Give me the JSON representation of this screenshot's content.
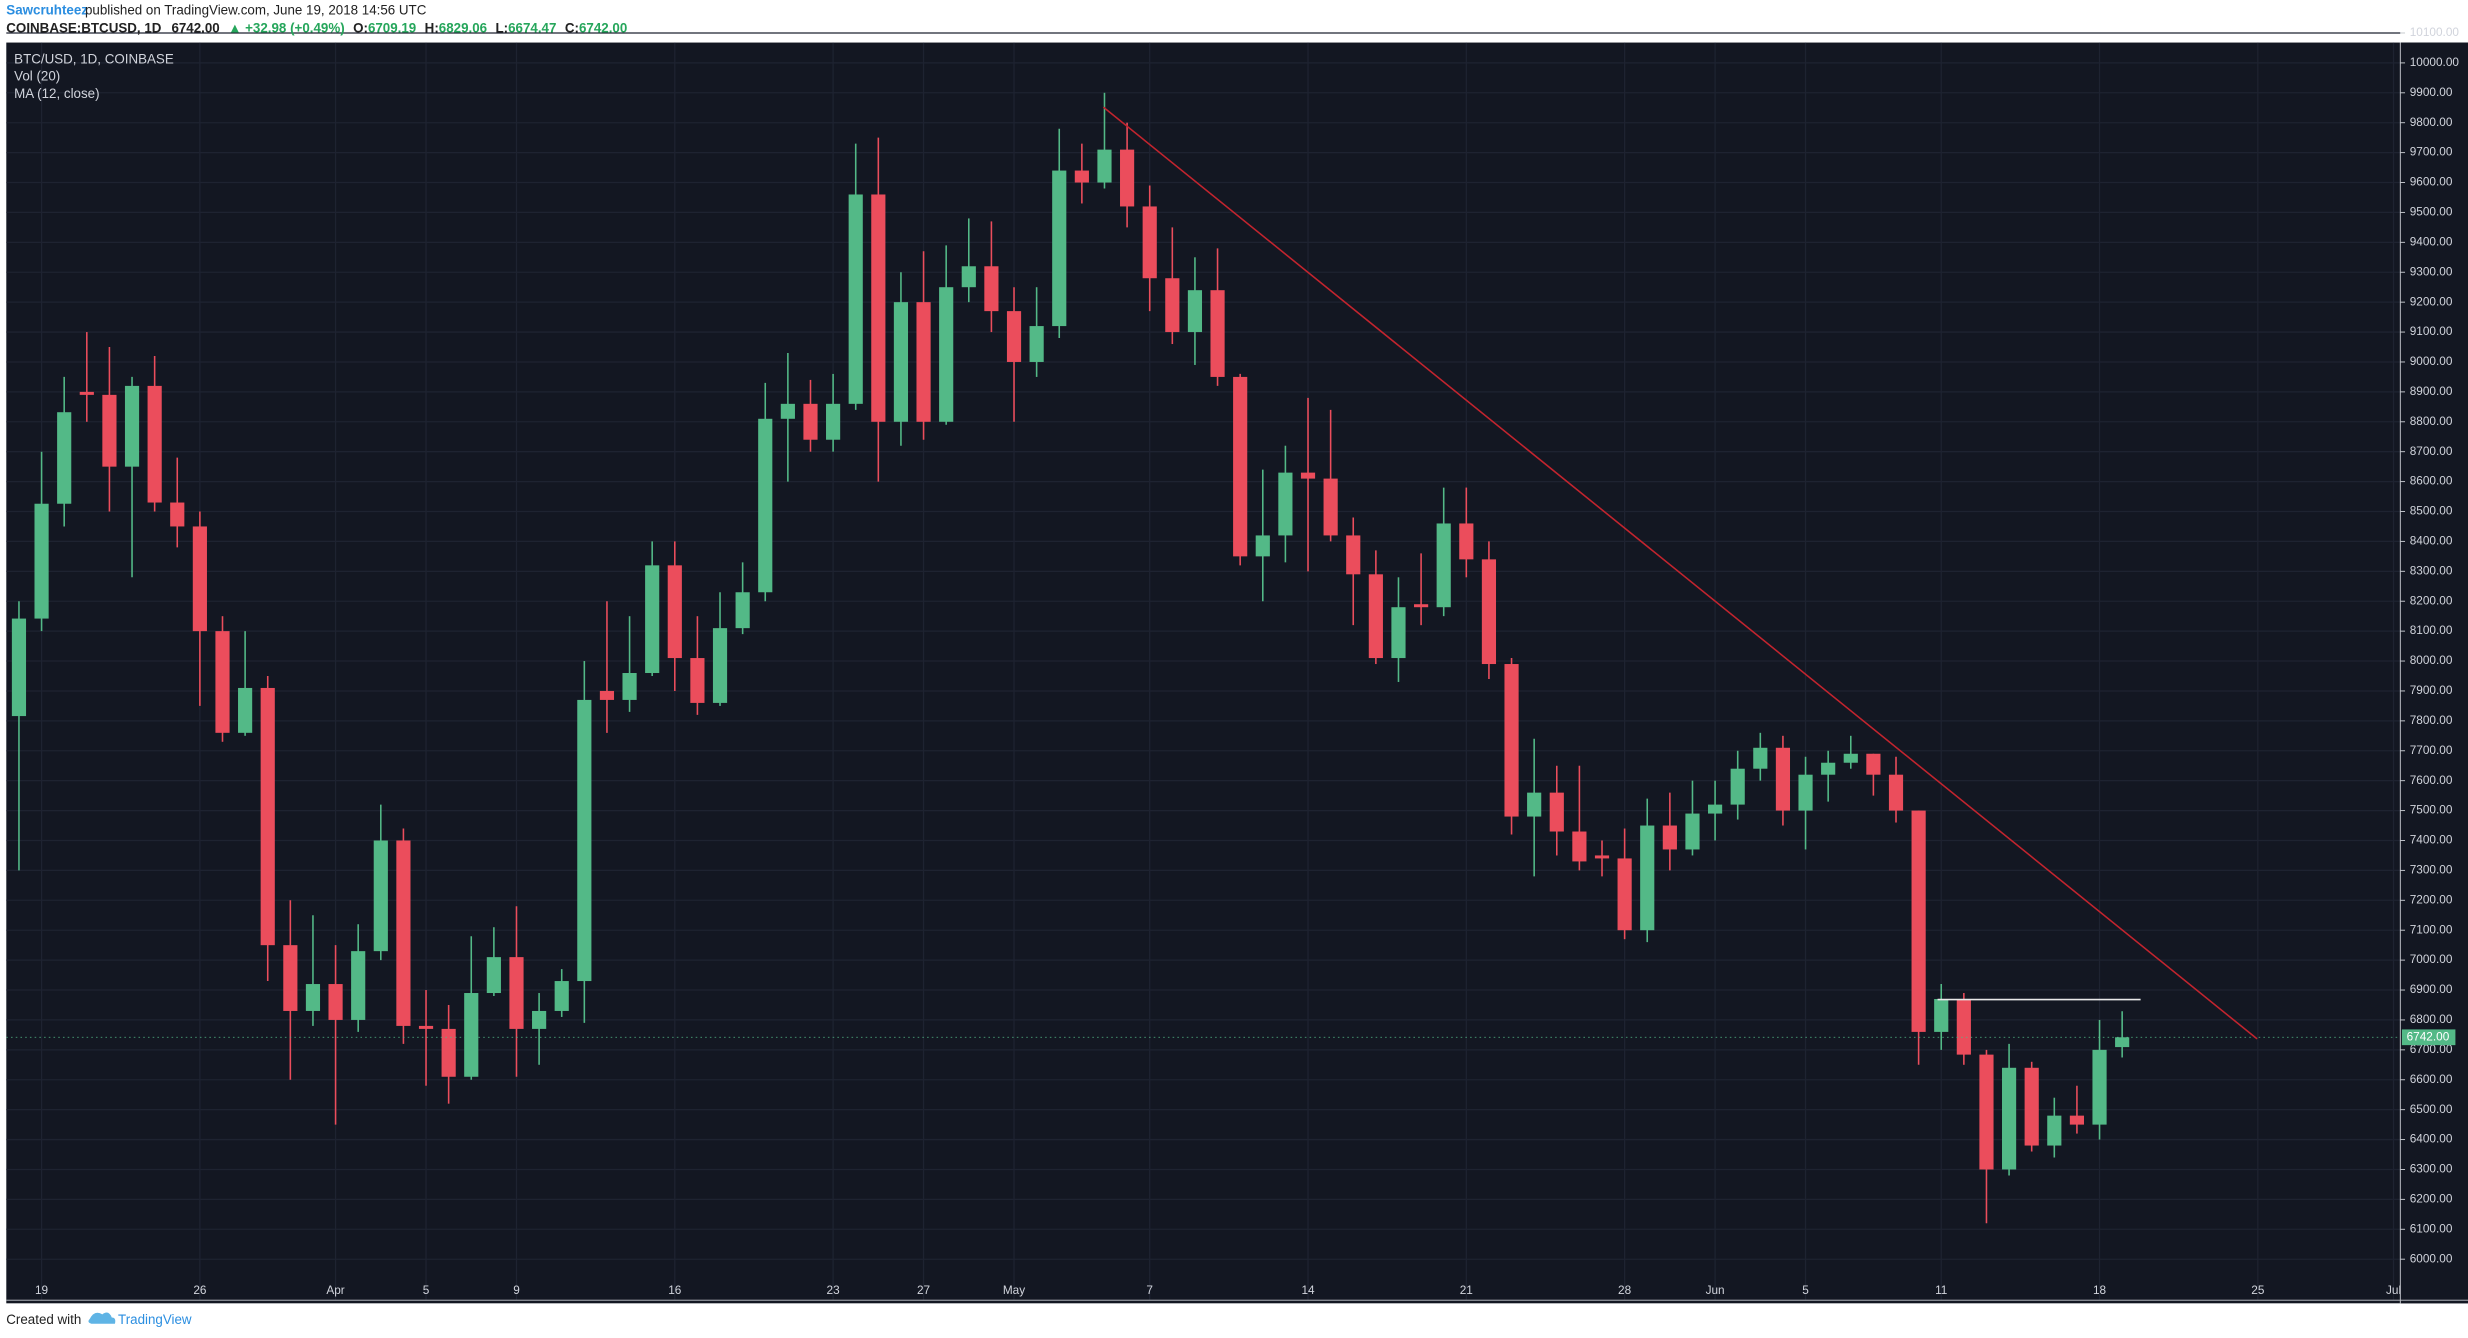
{
  "header": {
    "author": "Sawcruhteez",
    "published": "published on TradingView.com, June 19, 2018 14:56 UTC",
    "symbol": "COINBASE:BTCUSD, 1D",
    "last": "6742.00",
    "change": "▲ +32.98 (+0.49%)",
    "o_label": "O:",
    "o": "6709.19",
    "h_label": "H:",
    "h": "6829.06",
    "l_label": "L:",
    "l": "6674.47",
    "c_label": "C:",
    "c": "6742.00"
  },
  "footer": {
    "created": "Created with",
    "brand": "TradingView"
  },
  "chart_data": {
    "type": "candlestick",
    "legend": [
      "BTC/USD, 1D, COINBASE",
      "Vol (20)",
      "MA (12, close)"
    ],
    "up_color": "#53b987",
    "down_color": "#eb4d5c",
    "grid": true,
    "last_price_label": "6742.00",
    "open": [
      7816,
      8142,
      8526,
      8900,
      8890,
      8650,
      8920,
      8530,
      8450,
      8100,
      7760,
      7910,
      7050,
      6830,
      6920,
      6800,
      7030,
      7400,
      6780,
      6770,
      6610,
      6890,
      7010,
      6770,
      6830,
      6930,
      7900,
      7870,
      7960,
      8320,
      8010,
      7860,
      8110,
      8230,
      8810,
      8860,
      8740,
      8860,
      9560,
      8800,
      9200,
      8800,
      9250,
      9320,
      9170,
      9000,
      9120,
      9640,
      9600,
      9710,
      9520,
      9280,
      9100,
      9240,
      8950,
      8350,
      8420,
      8630,
      8610,
      8420,
      8290,
      8010,
      8190,
      8180,
      8460,
      8340,
      7990,
      7480,
      7560,
      7430,
      7350,
      7340,
      7100,
      7450,
      7370,
      7490,
      7520,
      7640,
      7710,
      7500,
      7620,
      7660,
      7690,
      7620,
      7500,
      6760,
      6870,
      6684,
      6300,
      6640,
      6380,
      6480,
      6450,
      6709.19
    ],
    "high": [
      8200,
      8700,
      8950,
      9100,
      9050,
      8950,
      9020,
      8680,
      8500,
      8150,
      8100,
      7950,
      7200,
      7150,
      7050,
      7120,
      7520,
      7440,
      6900,
      6850,
      7080,
      7110,
      7180,
      6890,
      6970,
      8000,
      8200,
      8150,
      8400,
      8400,
      8150,
      8230,
      8330,
      8930,
      9030,
      8940,
      8960,
      9730,
      9750,
      9300,
      9370,
      9390,
      9480,
      9470,
      9250,
      9250,
      9780,
      9730,
      9900,
      9800,
      9590,
      9450,
      9350,
      9380,
      8960,
      8640,
      8720,
      8880,
      8840,
      8480,
      8370,
      8280,
      8360,
      8580,
      8580,
      8400,
      8010,
      7740,
      7650,
      7650,
      7400,
      7440,
      7540,
      7560,
      7600,
      7600,
      7700,
      7760,
      7750,
      7680,
      7700,
      7750,
      7690,
      7680,
      7500,
      6920,
      6890,
      6700,
      6720,
      6660,
      6540,
      6580,
      6800,
      6829.06
    ],
    "low": [
      7300,
      8100,
      8450,
      8800,
      8500,
      8280,
      8500,
      8380,
      7850,
      7730,
      7750,
      6930,
      6600,
      6780,
      6450,
      6760,
      7000,
      6720,
      6580,
      6520,
      6600,
      6880,
      6610,
      6650,
      6810,
      6790,
      7760,
      7830,
      7950,
      7900,
      7820,
      7850,
      8090,
      8200,
      8600,
      8700,
      8700,
      8840,
      8600,
      8720,
      8740,
      8790,
      9200,
      9100,
      8800,
      8950,
      9080,
      9530,
      9580,
      9450,
      9170,
      9060,
      8990,
      8920,
      8320,
      8200,
      8330,
      8300,
      8400,
      8120,
      7990,
      7930,
      8120,
      8150,
      8280,
      7940,
      7420,
      7280,
      7350,
      7300,
      7280,
      7070,
      7060,
      7300,
      7350,
      7400,
      7470,
      7600,
      7450,
      7370,
      7530,
      7640,
      7550,
      7460,
      6650,
      6700,
      6650,
      6120,
      6280,
      6360,
      6340,
      6420,
      6400,
      6674.47
    ],
    "close": [
      8142,
      8526,
      8832,
      8890,
      8650,
      8920,
      8530,
      8450,
      8100,
      7760,
      7910,
      7050,
      6830,
      6920,
      6800,
      7030,
      7400,
      6780,
      6770,
      6610,
      6890,
      7010,
      6770,
      6830,
      6930,
      7870,
      7870,
      7960,
      8320,
      8010,
      7860,
      8110,
      8230,
      8810,
      8860,
      8740,
      8860,
      9560,
      8800,
      9200,
      8800,
      9250,
      9320,
      9170,
      9000,
      9120,
      9640,
      9600,
      9710,
      9520,
      9280,
      9100,
      9240,
      8950,
      8350,
      8420,
      8630,
      8610,
      8420,
      8290,
      8010,
      8180,
      8180,
      8460,
      8340,
      7990,
      7480,
      7560,
      7430,
      7330,
      7340,
      7100,
      7450,
      7370,
      7490,
      7520,
      7640,
      7710,
      7500,
      7620,
      7660,
      7690,
      7620,
      7500,
      6760,
      6870,
      6684,
      6300,
      6640,
      6380,
      6480,
      6450,
      6700,
      6742
    ],
    "xlim": [
      -0.56,
      105.3
    ],
    "xticks": [
      {
        "value": 1,
        "label": "19"
      },
      {
        "value": 8,
        "label": "26"
      },
      {
        "value": 14,
        "label": "Apr"
      },
      {
        "value": 18,
        "label": "5"
      },
      {
        "value": 22,
        "label": "9"
      },
      {
        "value": 29,
        "label": "16"
      },
      {
        "value": 36,
        "label": "23"
      },
      {
        "value": 40,
        "label": "27"
      },
      {
        "value": 44,
        "label": "May"
      },
      {
        "value": 50,
        "label": "7"
      },
      {
        "value": 57,
        "label": "14"
      },
      {
        "value": 64,
        "label": "21"
      },
      {
        "value": 71,
        "label": "28"
      },
      {
        "value": 75,
        "label": "Jun"
      },
      {
        "value": 79,
        "label": "5"
      },
      {
        "value": 85,
        "label": "11"
      },
      {
        "value": 92,
        "label": "18"
      },
      {
        "value": 99,
        "label": "25"
      },
      {
        "value": 105,
        "label": "Jul"
      }
    ],
    "ylim": [
      5863,
      10068
    ],
    "yticks": [
      {
        "value": 6000,
        "label": "6000.00"
      },
      {
        "value": 6100,
        "label": "6100.00"
      },
      {
        "value": 6200,
        "label": "6200.00"
      },
      {
        "value": 6300,
        "label": "6300.00"
      },
      {
        "value": 6400,
        "label": "6400.00"
      },
      {
        "value": 6500,
        "label": "6500.00"
      },
      {
        "value": 6600,
        "label": "6600.00"
      },
      {
        "value": 6700,
        "label": "6700.00"
      },
      {
        "value": 6800,
        "label": "6800.00"
      },
      {
        "value": 6900,
        "label": "6900.00"
      },
      {
        "value": 7000,
        "label": "7000.00"
      },
      {
        "value": 7100,
        "label": "7100.00"
      },
      {
        "value": 7200,
        "label": "7200.00"
      },
      {
        "value": 7300,
        "label": "7300.00"
      },
      {
        "value": 7400,
        "label": "7400.00"
      },
      {
        "value": 7500,
        "label": "7500.00"
      },
      {
        "value": 7600,
        "label": "7600.00"
      },
      {
        "value": 7700,
        "label": "7700.00"
      },
      {
        "value": 7800,
        "label": "7800.00"
      },
      {
        "value": 7900,
        "label": "7900.00"
      },
      {
        "value": 8000,
        "label": "8000.00"
      },
      {
        "value": 8100,
        "label": "8100.00"
      },
      {
        "value": 8200,
        "label": "8200.00"
      },
      {
        "value": 8300,
        "label": "8300.00"
      },
      {
        "value": 8400,
        "label": "8400.00"
      },
      {
        "value": 8500,
        "label": "8500.00"
      },
      {
        "value": 8600,
        "label": "8600.00"
      },
      {
        "value": 8700,
        "label": "8700.00"
      },
      {
        "value": 8800,
        "label": "8800.00"
      },
      {
        "value": 8900,
        "label": "8900.00"
      },
      {
        "value": 9000,
        "label": "9000.00"
      },
      {
        "value": 9100,
        "label": "9100.00"
      },
      {
        "value": 9200,
        "label": "9200.00"
      },
      {
        "value": 9300,
        "label": "9300.00"
      },
      {
        "value": 9400,
        "label": "9400.00"
      },
      {
        "value": 9500,
        "label": "9500.00"
      },
      {
        "value": 9600,
        "label": "9600.00"
      },
      {
        "value": 9700,
        "label": "9700.00"
      },
      {
        "value": 9800,
        "label": "9800.00"
      },
      {
        "value": 9900,
        "label": "9900.00"
      },
      {
        "value": 10000,
        "label": "10000.00"
      },
      {
        "value": 10100,
        "label": "10100.00"
      }
    ]
  }
}
